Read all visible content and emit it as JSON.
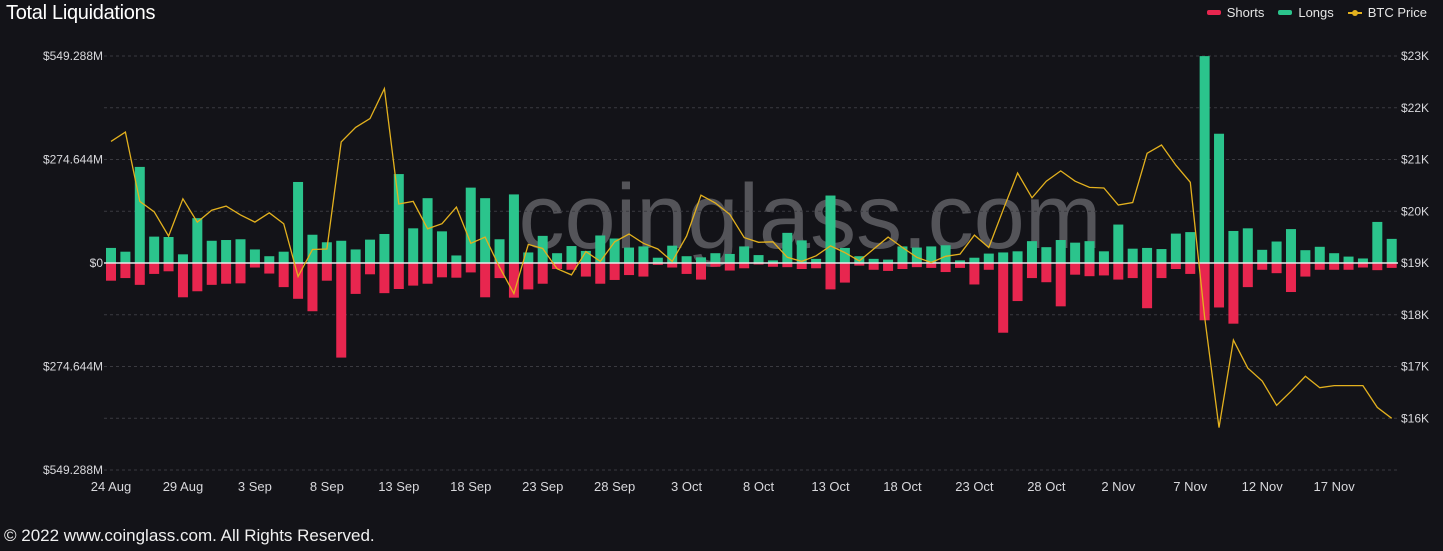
{
  "colors": {
    "shorts": "#e8264f",
    "longs": "#2bc48c",
    "price": "#e3b11e",
    "background": "#131318"
  },
  "watermark": "coinglass.com",
  "footer": "© 2022 www.coinglass.com. All Rights Reserved.",
  "chart_data": {
    "type": "bar",
    "title": "Total Liquidations",
    "legend": {
      "position": "top-right",
      "entries": [
        "Shorts",
        "Longs",
        "BTC Price"
      ]
    },
    "grid": true,
    "categories": [
      "24 Aug",
      "25 Aug",
      "26 Aug",
      "27 Aug",
      "28 Aug",
      "29 Aug",
      "30 Aug",
      "31 Aug",
      "1 Sep",
      "2 Sep",
      "3 Sep",
      "4 Sep",
      "5 Sep",
      "6 Sep",
      "7 Sep",
      "8 Sep",
      "9 Sep",
      "10 Sep",
      "11 Sep",
      "12 Sep",
      "13 Sep",
      "14 Sep",
      "15 Sep",
      "16 Sep",
      "17 Sep",
      "18 Sep",
      "19 Sep",
      "20 Sep",
      "21 Sep",
      "22 Sep",
      "23 Sep",
      "24 Sep",
      "25 Sep",
      "26 Sep",
      "27 Sep",
      "28 Sep",
      "29 Sep",
      "30 Sep",
      "1 Oct",
      "2 Oct",
      "3 Oct",
      "4 Oct",
      "5 Oct",
      "6 Oct",
      "7 Oct",
      "8 Oct",
      "9 Oct",
      "10 Oct",
      "11 Oct",
      "12 Oct",
      "13 Oct",
      "14 Oct",
      "15 Oct",
      "16 Oct",
      "17 Oct",
      "18 Oct",
      "19 Oct",
      "20 Oct",
      "21 Oct",
      "22 Oct",
      "23 Oct",
      "24 Oct",
      "25 Oct",
      "26 Oct",
      "27 Oct",
      "28 Oct",
      "29 Oct",
      "30 Oct",
      "31 Oct",
      "1 Nov",
      "2 Nov",
      "3 Nov",
      "4 Nov",
      "5 Nov",
      "6 Nov",
      "7 Nov",
      "8 Nov",
      "9 Nov",
      "10 Nov",
      "11 Nov",
      "12 Nov",
      "13 Nov",
      "14 Nov",
      "15 Nov",
      "16 Nov",
      "17 Nov",
      "18 Nov",
      "19 Nov",
      "20 Nov",
      "21 Nov"
    ],
    "x_tick_labels": [
      "24 Aug",
      "29 Aug",
      "3 Sep",
      "8 Sep",
      "13 Sep",
      "18 Sep",
      "23 Sep",
      "28 Sep",
      "3 Oct",
      "8 Oct",
      "13 Oct",
      "18 Oct",
      "23 Oct",
      "28 Oct",
      "2 Nov",
      "7 Nov",
      "12 Nov",
      "17 Nov"
    ],
    "y_left": {
      "unit": "USD millions",
      "range": [
        -549.288,
        549.288
      ],
      "ticks": [
        549.288,
        274.644,
        0,
        -274.644,
        -549.288
      ],
      "tick_labels": [
        "$549.288M",
        "$274.644M",
        "$0",
        "$274.644M",
        "$549.288M"
      ]
    },
    "y_right": {
      "unit": "USD",
      "range": [
        15000,
        23000
      ],
      "ticks": [
        23000,
        22000,
        21000,
        20000,
        19000,
        18000,
        17000,
        16000
      ],
      "tick_labels": [
        "$23K",
        "$22K",
        "$21K",
        "$20K",
        "$19K",
        "$18K",
        "$17K",
        "$16K"
      ]
    },
    "series": [
      {
        "name": "Longs",
        "type": "bar",
        "axis": "left",
        "values": [
          40,
          30,
          255,
          70,
          69,
          23,
          119,
          59,
          61,
          63,
          36,
          18,
          30,
          215,
          75,
          55,
          59,
          36,
          62,
          77,
          236,
          92,
          172,
          84,
          20,
          200,
          172,
          63,
          182,
          28,
          72,
          26,
          45,
          32,
          73,
          65,
          41,
          44,
          14,
          46,
          18,
          15,
          26,
          24,
          44,
          21,
          7,
          80,
          60,
          11,
          179,
          40,
          18,
          11,
          9,
          44,
          41,
          44,
          47,
          7,
          14,
          25,
          28,
          31,
          58,
          42,
          61,
          54,
          58,
          31,
          102,
          38,
          40,
          37,
          78,
          82,
          549,
          343,
          85,
          92,
          35,
          57,
          90,
          34,
          43,
          26,
          17,
          12,
          109,
          64
        ]
      },
      {
        "name": "Shorts",
        "type": "bar",
        "axis": "left",
        "values": [
          -47,
          -40,
          -58,
          -29,
          -22,
          -91,
          -75,
          -58,
          -55,
          -54,
          -12,
          -28,
          -64,
          -95,
          -128,
          -47,
          -251,
          -82,
          -30,
          -80,
          -69,
          -60,
          -55,
          -38,
          -39,
          -25,
          -91,
          -40,
          -92,
          -70,
          -55,
          -16,
          -18,
          -36,
          -55,
          -45,
          -32,
          -36,
          -5,
          -12,
          -29,
          -44,
          -10,
          -20,
          -14,
          -4,
          -10,
          -11,
          -16,
          -14,
          -70,
          -52,
          -7,
          -18,
          -21,
          -16,
          -11,
          -13,
          -24,
          -13,
          -57,
          -18,
          -185,
          -101,
          -40,
          -51,
          -115,
          -31,
          -35,
          -33,
          -44,
          -40,
          -120,
          -40,
          -16,
          -29,
          -152,
          -118,
          -161,
          -64,
          -18,
          -27,
          -77,
          -36,
          -18,
          -18,
          -18,
          -12,
          -19,
          -13
        ]
      },
      {
        "name": "BTC Price",
        "type": "line",
        "axis": "right",
        "values": [
          21350,
          21530,
          20190,
          19990,
          19520,
          20240,
          19790,
          20020,
          20100,
          19930,
          19790,
          19970,
          19760,
          18740,
          19260,
          19270,
          21340,
          21620,
          21790,
          22370,
          20140,
          20190,
          19660,
          19760,
          20080,
          19380,
          19500,
          18920,
          18410,
          19360,
          19280,
          18890,
          18770,
          19220,
          19030,
          19410,
          19560,
          19380,
          19270,
          19030,
          19520,
          20310,
          20160,
          19940,
          19490,
          19400,
          19410,
          19110,
          19030,
          19140,
          19330,
          19200,
          19040,
          19270,
          19500,
          19300,
          19110,
          19010,
          19130,
          19170,
          19540,
          19300,
          20030,
          20740,
          20260,
          20580,
          20780,
          20580,
          20460,
          20450,
          20120,
          20170,
          21120,
          21280,
          20890,
          20560,
          17960,
          15820,
          17510,
          16970,
          16720,
          16250,
          16520,
          16810,
          16590,
          16630,
          16630,
          16630,
          16210,
          16000
        ]
      }
    ]
  }
}
